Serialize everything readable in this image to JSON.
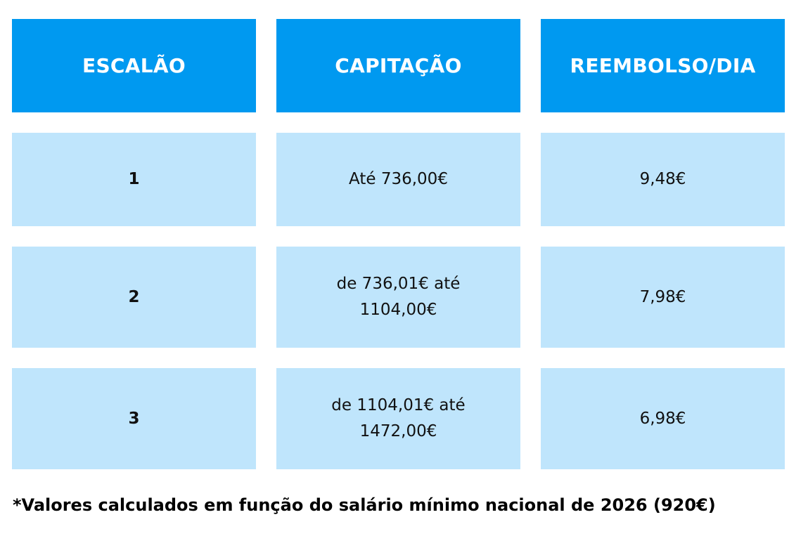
{
  "table": {
    "headers": [
      "ESCALÃO",
      "CAPITAÇÃO",
      "REEMBOLSO/DIA"
    ],
    "rows": [
      {
        "escalao": "1",
        "capitacao": "Até 736,00€",
        "reembolso": "9,48€"
      },
      {
        "escalao": "2",
        "capitacao": "de 736,01€ até\n1104,00€",
        "reembolso": "7,98€"
      },
      {
        "escalao": "3",
        "capitacao": "de 1104,01€ até\n1472,00€",
        "reembolso": "6,98€"
      }
    ]
  },
  "footnote": "*Valores calculados em função do salário mínimo nacional de 2026 (920€)",
  "colors": {
    "header_bg": "#0099f0",
    "cell_bg": "#bfe5fc",
    "header_text": "#ffffff"
  }
}
